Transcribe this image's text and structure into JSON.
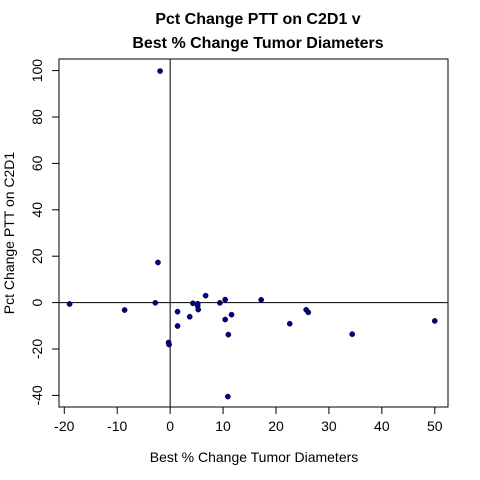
{
  "chart_data": {
    "type": "scatter",
    "title_line1": "Pct Change PTT on C2D1 v",
    "title_line2": "Best % Change Tumor Diameters",
    "xlabel": "Best % Change Tumor Diameters",
    "ylabel": "Pct Change PTT on C2D1",
    "xlim": [
      -21,
      52.5
    ],
    "ylim": [
      -45,
      105
    ],
    "xticks": [
      -20,
      -10,
      0,
      10,
      20,
      30,
      40,
      50
    ],
    "yticks": [
      -40,
      -20,
      0,
      20,
      40,
      60,
      80,
      100
    ],
    "reference_lines": {
      "x": 0,
      "y": 0
    },
    "point_color": "#00008b",
    "points": [
      {
        "x": -1.9,
        "y": 99.8
      },
      {
        "x": -2.3,
        "y": 17.3
      },
      {
        "x": -19.0,
        "y": -0.6
      },
      {
        "x": -8.6,
        "y": -3.2
      },
      {
        "x": -2.8,
        "y": -0.1
      },
      {
        "x": -0.3,
        "y": -17.2
      },
      {
        "x": -0.2,
        "y": -18.1
      },
      {
        "x": 1.4,
        "y": -3.9
      },
      {
        "x": 1.4,
        "y": -10.1
      },
      {
        "x": 3.7,
        "y": -6.1
      },
      {
        "x": 4.3,
        "y": -0.3
      },
      {
        "x": 5.2,
        "y": -1.5
      },
      {
        "x": 5.3,
        "y": -3.0
      },
      {
        "x": 5.2,
        "y": -0.5
      },
      {
        "x": 6.7,
        "y": 3.0
      },
      {
        "x": 9.4,
        "y": -0.1
      },
      {
        "x": 10.4,
        "y": 1.3
      },
      {
        "x": 10.4,
        "y": -7.3
      },
      {
        "x": 11.0,
        "y": -13.8
      },
      {
        "x": 11.6,
        "y": -5.2
      },
      {
        "x": 10.9,
        "y": -40.5
      },
      {
        "x": 17.2,
        "y": 1.2
      },
      {
        "x": 22.6,
        "y": -9.1
      },
      {
        "x": 25.7,
        "y": -3.1
      },
      {
        "x": 26.1,
        "y": -4.2
      },
      {
        "x": 34.4,
        "y": -13.6
      },
      {
        "x": 50.0,
        "y": -7.9
      }
    ]
  }
}
